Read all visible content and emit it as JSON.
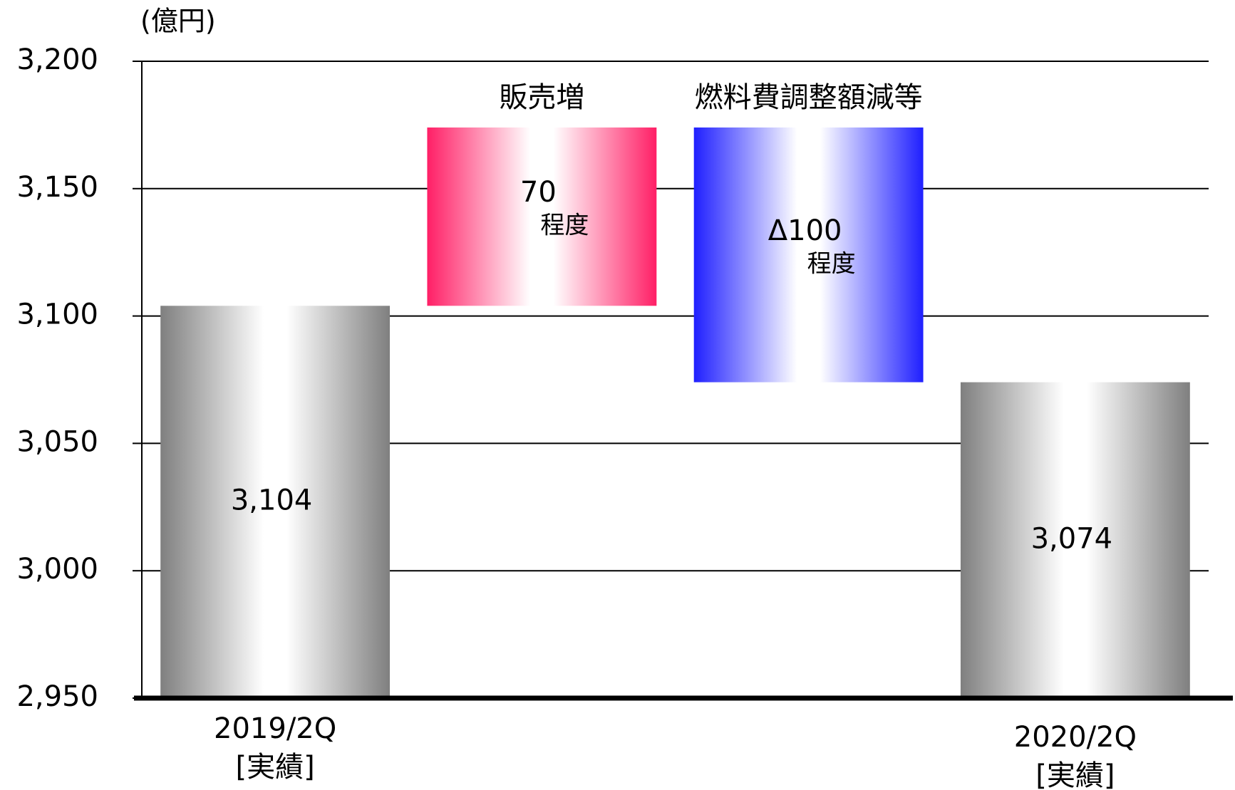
{
  "chart_data": {
    "type": "waterfall",
    "unit_label": "(億円)",
    "categories": [
      "2019/2Q\n[実績]",
      "販売増",
      "燃料費調整額減等",
      "2020/2Q\n[実績]"
    ],
    "kinds": [
      "total",
      "increase",
      "decrease",
      "total"
    ],
    "values": [
      3104,
      70,
      -100,
      3074
    ],
    "value_labels": [
      "3,104",
      "70",
      "Δ100",
      "3,074"
    ],
    "notes": [
      null,
      "程度",
      "程度",
      null
    ],
    "colors": {
      "total": "#7f7f7f",
      "increase": "#ff1f66",
      "decrease": "#1f1fff"
    },
    "ylim": [
      2950,
      3200
    ],
    "yticks": [
      {
        "value": 2950,
        "label": "2,950"
      },
      {
        "value": 3000,
        "label": "3,000"
      },
      {
        "value": 3050,
        "label": "3,050"
      },
      {
        "value": 3100,
        "label": "3,100"
      },
      {
        "value": 3150,
        "label": "3,150"
      },
      {
        "value": 3200,
        "label": "3,200"
      }
    ],
    "grid": true
  }
}
